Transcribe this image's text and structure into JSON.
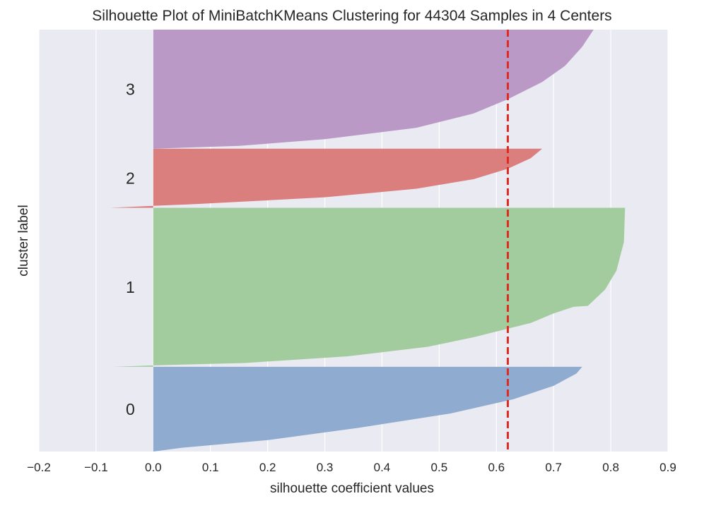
{
  "chart_data": {
    "type": "area",
    "title": "Silhouette Plot of MiniBatchKMeans Clustering for 44304 Samples in 4 Centers",
    "xlabel": "silhouette coefficient values",
    "ylabel": "cluster label",
    "xlim": [
      -0.2,
      0.9
    ],
    "xticks": [
      -0.2,
      -0.1,
      0.0,
      0.1,
      0.2,
      0.3,
      0.4,
      0.5,
      0.6,
      0.7,
      0.8,
      0.9
    ],
    "xtick_labels": [
      "−0.2",
      "−0.1",
      "0.0",
      "0.1",
      "0.2",
      "0.3",
      "0.4",
      "0.5",
      "0.6",
      "0.7",
      "0.8",
      "0.9"
    ],
    "ylim": [
      0,
      44304
    ],
    "grid": true,
    "average_silhouette_score": 0.62,
    "average_line_color": "#e0291f",
    "clusters": [
      {
        "label": "0",
        "color": "#8fabcf",
        "y_range": [
          0,
          8900
        ],
        "profile": [
          [
            0,
            0.0
          ],
          [
            400,
            0.05
          ],
          [
            1200,
            0.2
          ],
          [
            2500,
            0.36
          ],
          [
            4000,
            0.52
          ],
          [
            5500,
            0.63
          ],
          [
            6900,
            0.7
          ],
          [
            8200,
            0.74
          ],
          [
            8900,
            0.75
          ]
        ]
      },
      {
        "label": "1",
        "color": "#a3cc9e",
        "y_range": [
          8900,
          25600
        ],
        "profile": [
          [
            8900,
            -0.07
          ],
          [
            9050,
            0.0
          ],
          [
            9300,
            0.16
          ],
          [
            10000,
            0.34
          ],
          [
            11000,
            0.48
          ],
          [
            12000,
            0.56
          ],
          [
            13500,
            0.66
          ],
          [
            14500,
            0.7
          ],
          [
            15200,
            0.735
          ],
          [
            15300,
            0.76
          ],
          [
            17000,
            0.79
          ],
          [
            19000,
            0.81
          ],
          [
            22000,
            0.823
          ],
          [
            25600,
            0.825
          ]
        ]
      },
      {
        "label": "2",
        "color": "#da7e7e",
        "y_range": [
          25600,
          31800
        ],
        "profile": [
          [
            25600,
            -0.075
          ],
          [
            25800,
            0.0
          ],
          [
            26000,
            0.08
          ],
          [
            26700,
            0.3
          ],
          [
            27600,
            0.46
          ],
          [
            28600,
            0.56
          ],
          [
            29700,
            0.62
          ],
          [
            30800,
            0.66
          ],
          [
            31800,
            0.68
          ]
        ]
      },
      {
        "label": "3",
        "color": "#ba99c6",
        "y_range": [
          31800,
          44304
        ],
        "profile": [
          [
            31800,
            0.0
          ],
          [
            32100,
            0.15
          ],
          [
            32800,
            0.3
          ],
          [
            34000,
            0.46
          ],
          [
            35500,
            0.56
          ],
          [
            37000,
            0.62
          ],
          [
            38800,
            0.68
          ],
          [
            40500,
            0.72
          ],
          [
            42500,
            0.75
          ],
          [
            44304,
            0.77
          ]
        ]
      }
    ]
  }
}
